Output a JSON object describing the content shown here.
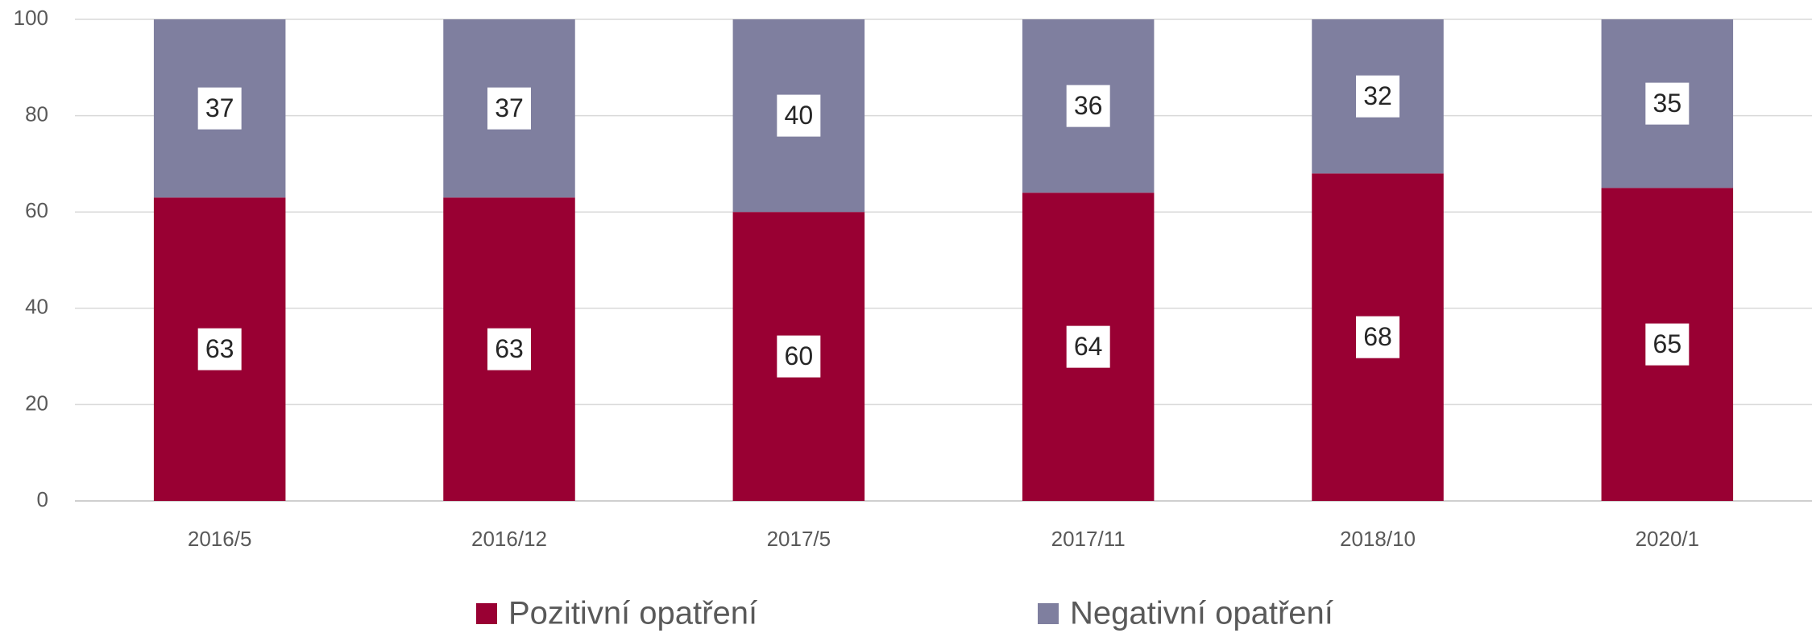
{
  "chart_data": {
    "type": "bar",
    "stacked": true,
    "categories": [
      "2016/5",
      "2016/12",
      "2017/5",
      "2017/11",
      "2018/10",
      "2020/1"
    ],
    "series": [
      {
        "name": "Pozitivní opatření",
        "color": "#990033",
        "values": [
          63,
          63,
          60,
          64,
          68,
          65
        ]
      },
      {
        "name": "Negativní opatření",
        "color": "#7f7f9f",
        "values": [
          37,
          37,
          40,
          36,
          32,
          35
        ]
      }
    ],
    "ylim": [
      0,
      100
    ],
    "yticks": [
      0,
      20,
      40,
      60,
      80,
      100
    ],
    "grid": true,
    "legend": "bottom"
  }
}
